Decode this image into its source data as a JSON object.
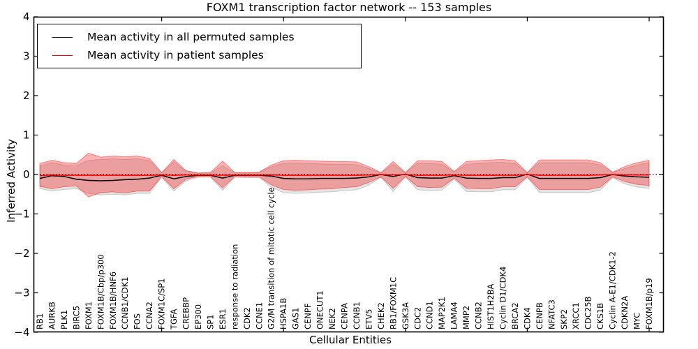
{
  "chart_data": {
    "type": "line",
    "title": "FOXM1 transcription factor network -- 153 samples",
    "xlabel": "Cellular Entities",
    "ylabel": "Inferred Activity",
    "ylim": [
      -4,
      4
    ],
    "ytick_values": [
      4,
      3,
      2,
      1,
      0,
      -1,
      -2,
      -3,
      -4
    ],
    "ytick_labels": [
      "4",
      "3",
      "2",
      "1",
      "0",
      "−1",
      "−2",
      "−3",
      "−4"
    ],
    "xtick_values": [
      10,
      20,
      30,
      40,
      50
    ],
    "grid": "off",
    "legend_position": "upper-left",
    "zero_line": {
      "value": 0,
      "style": "dotted",
      "color": "#000000"
    },
    "categories": [
      "RB1",
      "AURKB",
      "PLK1",
      "BIRC5",
      "FOXM1",
      "FOXM1B/Cbp/p300",
      "FOXM1B/HNF6",
      "CCNB1/CDK1",
      "FOS",
      "CCNA2",
      "FOXM1C/SP1",
      "TGFA",
      "CREBBP",
      "EP300",
      "SP1",
      "ESR1",
      "response to radiation",
      "CDK2",
      "CCNE1",
      "G2/M transition of mitotic cell cycle",
      "HSPA1B",
      "GAS1",
      "CENPF",
      "ONECUT1",
      "NEK2",
      "CENPA",
      "CCNB1",
      "ETV5",
      "CHEK2",
      "RB1/FOXM1C",
      "GSK3A",
      "CDC2",
      "CCND1",
      "MAP2K1",
      "LAMA4",
      "MMP2",
      "CCNB2",
      "HIST1H2BA",
      "Cyclin D1/CDK4",
      "BRCA2",
      "CDK4",
      "CENPB",
      "NFATC3",
      "SKP2",
      "XRCC1",
      "CDC25B",
      "CKS1B",
      "Cyclin A-E1/CDK1-2",
      "CDKN2A",
      "MYC",
      "FOXM1B/p19"
    ],
    "series": [
      {
        "name": "Mean activity in all permuted samples",
        "color": "#000000",
        "values": [
          -0.1,
          -0.03,
          -0.05,
          -0.12,
          -0.15,
          -0.16,
          -0.15,
          -0.13,
          -0.12,
          -0.09,
          -0.02,
          -0.11,
          -0.05,
          -0.02,
          -0.02,
          -0.09,
          -0.02,
          -0.02,
          -0.02,
          -0.04,
          -0.1,
          -0.11,
          -0.11,
          -0.1,
          -0.1,
          -0.1,
          -0.09,
          -0.06,
          0.0,
          -0.05,
          0.01,
          -0.08,
          -0.09,
          -0.09,
          -0.03,
          -0.09,
          -0.1,
          -0.1,
          -0.08,
          -0.08,
          0.01,
          -0.1,
          -0.1,
          -0.1,
          -0.1,
          -0.1,
          -0.08,
          0.0,
          -0.04,
          -0.06,
          -0.07
        ]
      },
      {
        "name": "Mean activity in patient samples",
        "color": "#ff0000",
        "values": [
          -0.03,
          -0.01,
          -0.02,
          -0.02,
          -0.02,
          -0.02,
          -0.02,
          -0.02,
          -0.02,
          -0.02,
          -0.01,
          -0.02,
          -0.01,
          -0.01,
          -0.01,
          -0.02,
          -0.01,
          -0.01,
          -0.01,
          -0.01,
          -0.02,
          -0.02,
          -0.02,
          -0.02,
          -0.02,
          -0.02,
          -0.02,
          -0.01,
          0.0,
          -0.01,
          0.0,
          -0.02,
          -0.02,
          -0.02,
          -0.01,
          -0.02,
          -0.02,
          -0.02,
          -0.02,
          -0.02,
          0.0,
          -0.02,
          -0.02,
          -0.02,
          -0.02,
          -0.02,
          -0.01,
          0.0,
          -0.01,
          -0.01,
          -0.01
        ]
      }
    ],
    "bands": [
      {
        "name": "permuted samples std band",
        "color": "#808080",
        "alpha": 0.22,
        "upper": [
          0.22,
          0.3,
          0.24,
          0.22,
          0.36,
          0.38,
          0.4,
          0.38,
          0.4,
          0.35,
          0.04,
          0.32,
          0.08,
          0.03,
          0.04,
          0.22,
          0.04,
          0.04,
          0.05,
          0.2,
          0.28,
          0.29,
          0.28,
          0.27,
          0.26,
          0.26,
          0.25,
          0.15,
          0.04,
          0.26,
          0.04,
          0.28,
          0.28,
          0.26,
          0.06,
          0.26,
          0.28,
          0.3,
          0.31,
          0.28,
          0.04,
          0.3,
          0.3,
          0.3,
          0.3,
          0.3,
          0.24,
          0.05,
          0.15,
          0.24,
          0.3
        ],
        "lower": [
          -0.36,
          -0.42,
          -0.38,
          -0.36,
          -0.48,
          -0.52,
          -0.5,
          -0.52,
          -0.48,
          -0.48,
          -0.07,
          -0.42,
          -0.16,
          -0.07,
          -0.07,
          -0.4,
          -0.07,
          -0.08,
          -0.08,
          -0.32,
          -0.46,
          -0.48,
          -0.47,
          -0.45,
          -0.44,
          -0.41,
          -0.39,
          -0.27,
          -0.07,
          -0.43,
          -0.06,
          -0.39,
          -0.41,
          -0.4,
          -0.12,
          -0.43,
          -0.44,
          -0.44,
          -0.39,
          -0.39,
          -0.07,
          -0.46,
          -0.46,
          -0.46,
          -0.46,
          -0.46,
          -0.4,
          -0.08,
          -0.24,
          -0.32,
          -0.35
        ]
      },
      {
        "name": "patient samples std band",
        "color": "#ff0000",
        "alpha": 0.3,
        "upper": [
          0.28,
          0.36,
          0.3,
          0.28,
          0.54,
          0.44,
          0.47,
          0.45,
          0.47,
          0.41,
          0.05,
          0.38,
          0.1,
          0.04,
          0.05,
          0.34,
          0.05,
          0.05,
          0.06,
          0.24,
          0.35,
          0.36,
          0.35,
          0.34,
          0.33,
          0.33,
          0.32,
          0.2,
          0.05,
          0.33,
          0.05,
          0.35,
          0.35,
          0.33,
          0.08,
          0.33,
          0.35,
          0.37,
          0.38,
          0.35,
          0.05,
          0.37,
          0.37,
          0.37,
          0.37,
          0.37,
          0.3,
          0.06,
          0.2,
          0.3,
          0.36
        ],
        "lower": [
          -0.3,
          -0.36,
          -0.31,
          -0.29,
          -0.57,
          -0.46,
          -0.44,
          -0.47,
          -0.42,
          -0.42,
          -0.05,
          -0.36,
          -0.12,
          -0.05,
          -0.05,
          -0.34,
          -0.05,
          -0.06,
          -0.06,
          -0.26,
          -0.38,
          -0.4,
          -0.39,
          -0.37,
          -0.36,
          -0.33,
          -0.31,
          -0.2,
          -0.06,
          -0.35,
          -0.05,
          -0.31,
          -0.33,
          -0.32,
          -0.09,
          -0.35,
          -0.36,
          -0.36,
          -0.31,
          -0.31,
          -0.06,
          -0.38,
          -0.38,
          -0.38,
          -0.38,
          -0.38,
          -0.32,
          -0.06,
          -0.18,
          -0.25,
          -0.28
        ]
      }
    ]
  }
}
